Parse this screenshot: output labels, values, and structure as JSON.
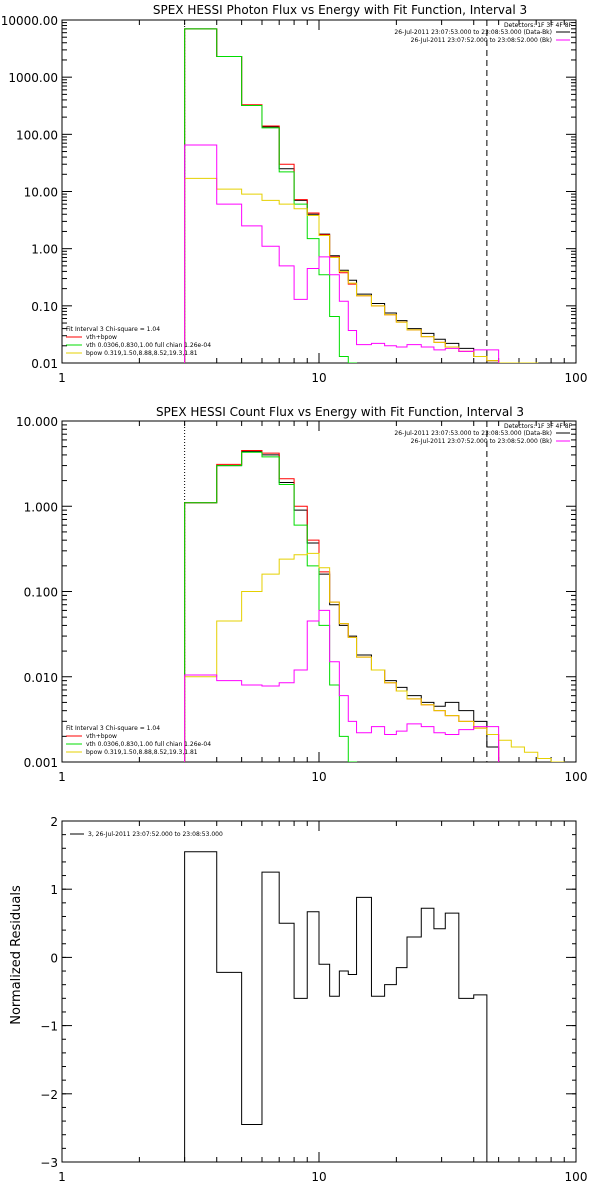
{
  "colors": {
    "data": "#000000",
    "total": "#ff0000",
    "vth": "#00dd00",
    "bpow": "#e5d000",
    "bk": "#ff00ff",
    "axis": "#000000"
  },
  "chart_data": [
    {
      "id": "photon",
      "type": "line",
      "title": "SPEX HESSI Photon Flux vs Energy with Fit Function, Interval 3",
      "xlabel": "",
      "ylabel": "",
      "x_scale": "log",
      "y_scale": "log",
      "xlim": [
        1,
        100
      ],
      "ylim": [
        0.01,
        10000
      ],
      "x_tick_values": [
        1,
        10,
        100
      ],
      "x_tick_labels": [
        "1",
        "10",
        "100"
      ],
      "y_tick_values": [
        0.01,
        0.1,
        1,
        10,
        100,
        1000,
        10000
      ],
      "y_tick_labels": [
        "0.01",
        "0.10",
        "1.00",
        "10.00",
        "100.00",
        "1000.00",
        "10000.00"
      ],
      "fit_range": [
        3,
        45
      ],
      "detectors_text": "Detectors: 1F 3F 4F 8F",
      "info_lines": [
        {
          "text": "26-Jul-2011 23:07:53.000 to 23:08:53.000 (Data-Bk)",
          "color_key": "data"
        },
        {
          "text": "26-Jul-2011 23:07:52.000 to 23:08:52.000 (Bk)",
          "color_key": "bk"
        }
      ],
      "fit_text": "Fit Interval  3    Chi-square = 1.04",
      "legend": [
        {
          "text": "vth+bpow",
          "color_key": "total"
        },
        {
          "text": "vth  0.0306,0.830,1.00  full chian 1.26e-04",
          "color_key": "vth"
        },
        {
          "text": "bpow  0.319,1.50,8.88,8.52,19.3,1.81",
          "color_key": "bpow"
        }
      ],
      "edges": [
        3,
        4,
        5,
        6,
        7,
        8,
        9,
        10,
        11,
        12,
        13,
        14,
        16,
        18,
        20,
        22,
        25,
        28,
        31,
        35,
        40,
        45,
        50,
        56,
        63,
        71
      ],
      "series": [
        {
          "color_key": "data",
          "values": [
            7000,
            2300,
            320,
            135,
            25,
            7,
            4,
            1.8,
            0.75,
            0.42,
            0.28,
            0.16,
            0.11,
            0.075,
            0.055,
            0.04,
            0.033,
            0.026,
            0.022,
            0.018,
            0.013,
            0.011
          ]
        },
        {
          "color_key": "total",
          "values": [
            7000,
            2300,
            330,
            140,
            30,
            7.2,
            4.2,
            1.75,
            0.72,
            0.38,
            0.24,
            0.15,
            0.1,
            0.07,
            0.052,
            0.038,
            0.029,
            0.023,
            0.019,
            0.016,
            0.013,
            0.011
          ]
        },
        {
          "color_key": "vth",
          "values": [
            7000,
            2300,
            320,
            130,
            22,
            6,
            1.5,
            0.35,
            0.065,
            0.013,
            0.004
          ]
        },
        {
          "color_key": "bpow",
          "values": [
            17,
            11,
            9,
            7,
            6,
            5,
            3.8,
            1.7,
            0.7,
            0.4,
            0.25,
            0.15,
            0.1,
            0.07,
            0.052,
            0.038,
            0.029,
            0.023,
            0.019,
            0.016,
            0.013,
            0.011,
            0.01,
            0.009,
            0.008
          ]
        },
        {
          "color_key": "bk",
          "values": [
            65,
            6,
            2.5,
            1.1,
            0.5,
            0.13,
            0.45,
            0.72,
            0.35,
            0.12,
            0.037,
            0.021,
            0.022,
            0.02,
            0.019,
            0.021,
            0.019,
            0.017,
            0.018,
            0.016,
            0.017,
            0.017
          ]
        }
      ]
    },
    {
      "id": "count",
      "type": "line",
      "title": "SPEX HESSI Count Flux vs Energy with Fit Function, Interval 3",
      "xlabel": "",
      "ylabel": "",
      "x_scale": "log",
      "y_scale": "log",
      "xlim": [
        1,
        100
      ],
      "ylim": [
        0.001,
        10
      ],
      "x_tick_values": [
        1,
        10,
        100
      ],
      "x_tick_labels": [
        "1",
        "10",
        "100"
      ],
      "y_tick_values": [
        0.001,
        0.01,
        0.1,
        1,
        10
      ],
      "y_tick_labels": [
        "0.001",
        "0.010",
        "0.100",
        "1.000",
        "10.000"
      ],
      "fit_range": [
        3,
        45
      ],
      "detectors_text": "Detectors: 1F 3F 4F 8F",
      "info_lines": [
        {
          "text": "26-Jul-2011 23:07:53.000 to 23:08:53.000 (Data-Bk)",
          "color_key": "data"
        },
        {
          "text": "26-Jul-2011 23:07:52.000 to 23:08:52.000 (Bk)",
          "color_key": "bk"
        }
      ],
      "fit_text": "Fit Interval  3    Chi-square = 1.04",
      "legend": [
        {
          "text": "vth+bpow",
          "color_key": "total"
        },
        {
          "text": "vth  0.0306,0.830,1.00  full chian 1.26e-04",
          "color_key": "vth"
        },
        {
          "text": "bpow  0.319,1.50,8.88,8.52,19.3,1.81",
          "color_key": "bpow"
        }
      ],
      "edges": [
        3,
        4,
        5,
        6,
        7,
        8,
        9,
        10,
        11,
        12,
        13,
        14,
        16,
        18,
        20,
        22,
        25,
        28,
        31,
        35,
        40,
        45,
        50,
        56,
        63,
        71,
        80,
        90
      ],
      "series": [
        {
          "color_key": "data",
          "values": [
            1.1,
            3.0,
            4.4,
            4.0,
            1.9,
            0.9,
            0.37,
            0.16,
            0.07,
            0.04,
            0.03,
            0.018,
            0.012,
            0.009,
            0.0075,
            0.006,
            0.005,
            0.0045,
            0.005,
            0.004,
            0.003,
            0.0015
          ]
        },
        {
          "color_key": "total",
          "values": [
            1.1,
            3.1,
            4.5,
            4.2,
            2.1,
            1.0,
            0.4,
            0.17,
            0.075,
            0.042,
            0.029,
            0.017,
            0.012,
            0.0085,
            0.0068,
            0.0055,
            0.0047,
            0.004,
            0.0035,
            0.003,
            0.0025,
            0.0021
          ]
        },
        {
          "color_key": "vth",
          "values": [
            1.1,
            3.0,
            4.3,
            3.8,
            1.8,
            0.6,
            0.2,
            0.04,
            0.008,
            0.002,
            0.0005
          ]
        },
        {
          "color_key": "bpow",
          "values": [
            0.01,
            0.045,
            0.1,
            0.16,
            0.24,
            0.27,
            0.28,
            0.19,
            0.075,
            0.042,
            0.029,
            0.017,
            0.012,
            0.0085,
            0.0068,
            0.0055,
            0.0047,
            0.004,
            0.0035,
            0.003,
            0.0025,
            0.0021,
            0.0018,
            0.0015,
            0.0013,
            0.0011,
            0.001
          ]
        },
        {
          "color_key": "bk",
          "values": [
            0.0105,
            0.009,
            0.008,
            0.0078,
            0.0085,
            0.012,
            0.045,
            0.06,
            0.015,
            0.006,
            0.003,
            0.0022,
            0.0026,
            0.0021,
            0.0023,
            0.0028,
            0.0026,
            0.0022,
            0.0021,
            0.0024,
            0.0026,
            0.0026
          ]
        }
      ]
    },
    {
      "id": "residuals",
      "type": "line",
      "title": "",
      "xlabel": "",
      "ylabel": "Normalized Residuals",
      "x_scale": "log",
      "y_scale": "linear",
      "xlim": [
        1,
        100
      ],
      "ylim": [
        -3,
        2
      ],
      "x_tick_values": [
        1,
        10,
        100
      ],
      "x_tick_labels": [
        "1",
        "10",
        "100"
      ],
      "y_tick_values": [
        -3,
        -2,
        -1,
        0,
        1,
        2
      ],
      "y_tick_labels": [
        "−3",
        "−2",
        "−1",
        "0",
        "1",
        "2"
      ],
      "legend": [
        {
          "text": "3, 26-Jul-2011 23:07:52.000 to 23:08:53.000",
          "color_key": "data"
        }
      ],
      "edges": [
        3,
        4,
        5,
        6,
        7,
        8,
        9,
        10,
        11,
        12,
        13,
        14,
        16,
        18,
        20,
        22,
        25,
        28,
        31,
        35,
        40,
        45
      ],
      "series": [
        {
          "color_key": "data",
          "values": [
            1.55,
            -0.22,
            -2.45,
            1.25,
            0.5,
            -0.6,
            0.67,
            -0.1,
            -0.57,
            -0.2,
            -0.25,
            0.88,
            -0.57,
            -0.4,
            -0.15,
            0.3,
            0.72,
            0.42,
            0.65,
            -0.6,
            -0.55
          ]
        }
      ]
    }
  ]
}
